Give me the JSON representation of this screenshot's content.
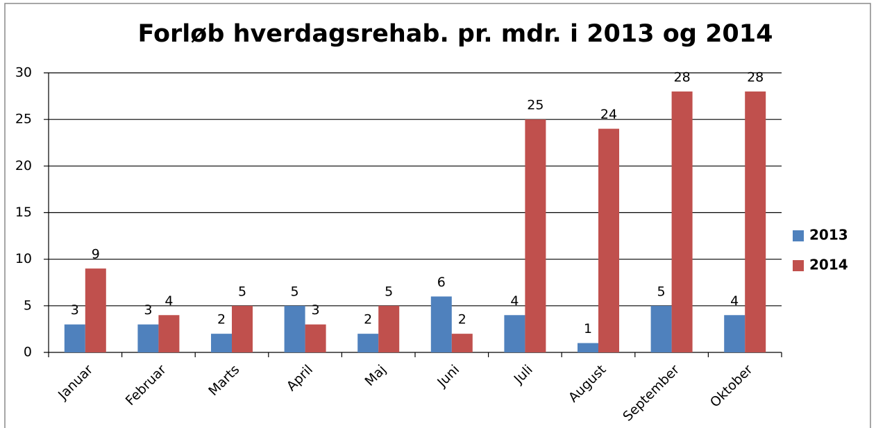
{
  "chart_data": {
    "type": "bar",
    "title": "Forløb hverdagsrehab.  pr. mdr. i 2013 og 2014",
    "categories": [
      "Januar",
      "Februar",
      "Marts",
      "April",
      "Maj",
      "Juni",
      "Juli",
      "August",
      "September",
      "Oktober"
    ],
    "series": [
      {
        "name": "2013",
        "color": "#4f81bd",
        "values": [
          3,
          3,
          2,
          5,
          2,
          6,
          4,
          1,
          5,
          4
        ]
      },
      {
        "name": "2014",
        "color": "#c0504d",
        "values": [
          9,
          4,
          5,
          3,
          5,
          2,
          25,
          24,
          28,
          28
        ]
      }
    ],
    "ylim": [
      0,
      30
    ],
    "yticks": [
      0,
      5,
      10,
      15,
      20,
      25,
      30
    ],
    "grid": true,
    "legend": "right"
  }
}
